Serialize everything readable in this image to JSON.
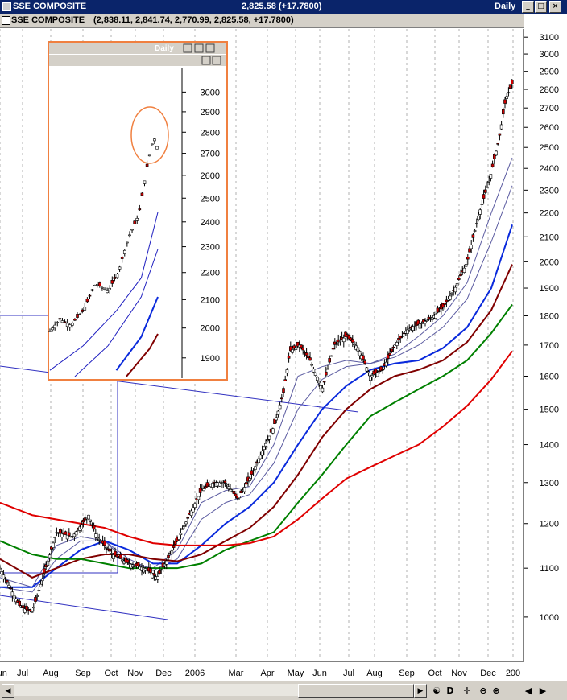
{
  "window": {
    "title": "SSE COMPOSITE",
    "price_change": "2,825.58 (+17.7800)",
    "period": "Daily",
    "title_icon": "chart-window-icon"
  },
  "info_bar": {
    "symbol": "SSE COMPOSITE",
    "ohlc": "(2,838.11, 2,841.74, 2,770.99, 2,825.58, +17.7800)"
  },
  "inset": {
    "period": "Daily",
    "highlight_color": "#f08040"
  },
  "toolbar": {
    "buttons": [
      {
        "label": "◀",
        "icon": "scroll-left-icon"
      },
      {
        "label": "▶",
        "icon": "scroll-right-icon"
      },
      {
        "label": "☯",
        "icon": "refresh-icon"
      },
      {
        "label": "D",
        "icon": "period-daily-icon"
      },
      {
        "label": "✛",
        "icon": "crosshair-icon"
      },
      {
        "label": "⊖",
        "icon": "zoom-out-icon"
      },
      {
        "label": "⊕",
        "icon": "zoom-in-icon"
      },
      {
        "label": "◀",
        "icon": "pan-left-icon"
      },
      {
        "label": "▶",
        "icon": "pan-right-icon"
      }
    ]
  },
  "chart_data": [
    {
      "type": "candlestick",
      "title": "SSE COMPOSITE",
      "scale": "log",
      "ylim": [
        920,
        3150
      ],
      "y_ticks": [
        3100,
        3000,
        2900,
        2800,
        2700,
        2600,
        2500,
        2400,
        2300,
        2200,
        2100,
        2000,
        1900,
        1800,
        1700,
        1600,
        1500,
        1400,
        1300,
        1200,
        1100,
        1000
      ],
      "x_ticks": [
        "Jun",
        "Jul",
        "Aug",
        "Sep",
        "Oct",
        "Nov",
        "Dec",
        "2006",
        "Mar",
        "Apr",
        "May",
        "Jun",
        "Jul",
        "Aug",
        "Sep",
        "Oct",
        "Nov",
        "Dec",
        "200"
      ],
      "grid": "vertical dashed",
      "legend": "none",
      "series": [
        {
          "name": "price",
          "color": "#000000",
          "points": [
            [
              0,
              1100
            ],
            [
              25,
              1020
            ],
            [
              40,
              1010
            ],
            [
              55,
              1090
            ],
            [
              70,
              1180
            ],
            [
              90,
              1170
            ],
            [
              110,
              1220
            ],
            [
              120,
              1170
            ],
            [
              140,
              1130
            ],
            [
              160,
              1110
            ],
            [
              180,
              1100
            ],
            [
              195,
              1080
            ],
            [
              205,
              1110
            ],
            [
              220,
              1160
            ],
            [
              235,
              1220
            ],
            [
              250,
              1280
            ],
            [
              265,
              1300
            ],
            [
              280,
              1300
            ],
            [
              295,
              1260
            ],
            [
              310,
              1310
            ],
            [
              325,
              1380
            ],
            [
              340,
              1450
            ],
            [
              352,
              1550
            ],
            [
              360,
              1680
            ],
            [
              372,
              1700
            ],
            [
              385,
              1650
            ],
            [
              400,
              1560
            ],
            [
              415,
              1700
            ],
            [
              430,
              1730
            ],
            [
              445,
              1690
            ],
            [
              460,
              1600
            ],
            [
              475,
              1620
            ],
            [
              490,
              1700
            ],
            [
              505,
              1750
            ],
            [
              520,
              1770
            ],
            [
              535,
              1790
            ],
            [
              550,
              1830
            ],
            [
              565,
              1900
            ],
            [
              580,
              2000
            ],
            [
              595,
              2200
            ],
            [
              608,
              2350
            ],
            [
              620,
              2550
            ],
            [
              628,
              2750
            ],
            [
              636,
              2830
            ]
          ]
        },
        {
          "name": "",
          "color": "#5a5aa0",
          "width": 1,
          "points": [
            [
              0,
              1080
            ],
            [
              40,
              1060
            ],
            [
              70,
              1150
            ],
            [
              100,
              1170
            ],
            [
              130,
              1160
            ],
            [
              160,
              1110
            ],
            [
              190,
              1100
            ],
            [
              220,
              1140
            ],
            [
              250,
              1250
            ],
            [
              280,
              1280
            ],
            [
              310,
              1290
            ],
            [
              340,
              1400
            ],
            [
              370,
              1600
            ],
            [
              400,
              1630
            ],
            [
              430,
              1650
            ],
            [
              460,
              1640
            ],
            [
              490,
              1670
            ],
            [
              520,
              1730
            ],
            [
              550,
              1800
            ],
            [
              580,
              1920
            ],
            [
              610,
              2200
            ],
            [
              636,
              2450
            ]
          ]
        },
        {
          "name": "",
          "color": "#5a5aa0",
          "width": 1,
          "points": [
            [
              0,
              1060
            ],
            [
              40,
              1050
            ],
            [
              70,
              1120
            ],
            [
              100,
              1160
            ],
            [
              130,
              1160
            ],
            [
              160,
              1120
            ],
            [
              190,
              1095
            ],
            [
              220,
              1120
            ],
            [
              250,
              1210
            ],
            [
              280,
              1250
            ],
            [
              310,
              1270
            ],
            [
              340,
              1350
            ],
            [
              370,
              1500
            ],
            [
              400,
              1590
            ],
            [
              430,
              1630
            ],
            [
              460,
              1640
            ],
            [
              490,
              1660
            ],
            [
              520,
              1700
            ],
            [
              550,
              1760
            ],
            [
              580,
              1860
            ],
            [
              610,
              2080
            ],
            [
              636,
              2320
            ]
          ]
        },
        {
          "name": "",
          "color": "#0a2adc",
          "width": 2,
          "points": [
            [
              0,
              1060
            ],
            [
              40,
              1060
            ],
            [
              70,
              1100
            ],
            [
              100,
              1140
            ],
            [
              130,
              1160
            ],
            [
              160,
              1140
            ],
            [
              190,
              1110
            ],
            [
              220,
              1110
            ],
            [
              250,
              1150
            ],
            [
              280,
              1200
            ],
            [
              310,
              1240
            ],
            [
              340,
              1300
            ],
            [
              370,
              1400
            ],
            [
              400,
              1500
            ],
            [
              430,
              1570
            ],
            [
              460,
              1620
            ],
            [
              490,
              1640
            ],
            [
              520,
              1650
            ],
            [
              550,
              1690
            ],
            [
              580,
              1760
            ],
            [
              610,
              1900
            ],
            [
              636,
              2150
            ]
          ]
        },
        {
          "name": "",
          "color": "#800000",
          "width": 2,
          "points": [
            [
              0,
              1120
            ],
            [
              40,
              1080
            ],
            [
              70,
              1100
            ],
            [
              100,
              1120
            ],
            [
              130,
              1130
            ],
            [
              160,
              1130
            ],
            [
              190,
              1120
            ],
            [
              220,
              1115
            ],
            [
              250,
              1130
            ],
            [
              280,
              1160
            ],
            [
              310,
              1190
            ],
            [
              340,
              1240
            ],
            [
              370,
              1320
            ],
            [
              400,
              1420
            ],
            [
              430,
              1500
            ],
            [
              460,
              1560
            ],
            [
              490,
              1600
            ],
            [
              520,
              1620
            ],
            [
              550,
              1650
            ],
            [
              580,
              1710
            ],
            [
              610,
              1820
            ],
            [
              636,
              1990
            ]
          ]
        },
        {
          "name": "",
          "color": "#008000",
          "width": 2,
          "points": [
            [
              0,
              1160
            ],
            [
              40,
              1130
            ],
            [
              70,
              1120
            ],
            [
              100,
              1120
            ],
            [
              130,
              1110
            ],
            [
              160,
              1100
            ],
            [
              190,
              1100
            ],
            [
              220,
              1100
            ],
            [
              250,
              1110
            ],
            [
              280,
              1140
            ],
            [
              310,
              1160
            ],
            [
              340,
              1180
            ],
            [
              370,
              1250
            ],
            [
              400,
              1320
            ],
            [
              430,
              1400
            ],
            [
              460,
              1480
            ],
            [
              490,
              1520
            ],
            [
              520,
              1560
            ],
            [
              550,
              1600
            ],
            [
              580,
              1650
            ],
            [
              610,
              1740
            ],
            [
              636,
              1840
            ]
          ]
        },
        {
          "name": "",
          "color": "#e00000",
          "width": 2,
          "points": [
            [
              0,
              1250
            ],
            [
              40,
              1220
            ],
            [
              70,
              1210
            ],
            [
              100,
              1200
            ],
            [
              130,
              1190
            ],
            [
              160,
              1170
            ],
            [
              190,
              1155
            ],
            [
              220,
              1150
            ],
            [
              250,
              1150
            ],
            [
              280,
              1150
            ],
            [
              310,
              1155
            ],
            [
              340,
              1170
            ],
            [
              370,
              1210
            ],
            [
              400,
              1260
            ],
            [
              430,
              1310
            ],
            [
              460,
              1340
            ],
            [
              490,
              1370
            ],
            [
              520,
              1400
            ],
            [
              550,
              1450
            ],
            [
              580,
              1510
            ],
            [
              610,
              1590
            ],
            [
              636,
              1680
            ]
          ]
        }
      ]
    },
    {
      "type": "candlestick",
      "title": "",
      "scale": "log",
      "ylim": [
        1840,
        3120
      ],
      "y_ticks": [
        3000,
        2900,
        2800,
        2700,
        2600,
        2500,
        2400,
        2300,
        2200,
        2100,
        2000,
        1900
      ],
      "series": [
        {
          "name": "price",
          "color": "#000000",
          "points": [
            [
              0,
              1990
            ],
            [
              12,
              2030
            ],
            [
              25,
              2010
            ],
            [
              40,
              2060
            ],
            [
              55,
              2160
            ],
            [
              70,
              2130
            ],
            [
              82,
              2200
            ],
            [
              95,
              2340
            ],
            [
              107,
              2430
            ],
            [
              117,
              2640
            ],
            [
              125,
              2780
            ],
            [
              130,
              2720
            ]
          ]
        },
        {
          "name": "",
          "color": "#2020c0",
          "width": 1,
          "points": [
            [
              0,
              1860
            ],
            [
              40,
              1940
            ],
            [
              80,
              2060
            ],
            [
              110,
              2180
            ],
            [
              130,
              2440
            ]
          ]
        },
        {
          "name": "",
          "color": "#2020c0",
          "width": 1,
          "points": [
            [
              30,
              1840
            ],
            [
              70,
              1940
            ],
            [
              110,
              2110
            ],
            [
              130,
              2290
            ]
          ]
        },
        {
          "name": "",
          "color": "#0a2adc",
          "width": 2,
          "points": [
            [
              80,
              1860
            ],
            [
              110,
              1970
            ],
            [
              130,
              2110
            ]
          ]
        },
        {
          "name": "",
          "color": "#800000",
          "width": 2,
          "points": [
            [
              92,
              1840
            ],
            [
              120,
              1930
            ],
            [
              130,
              1980
            ]
          ]
        }
      ]
    }
  ]
}
